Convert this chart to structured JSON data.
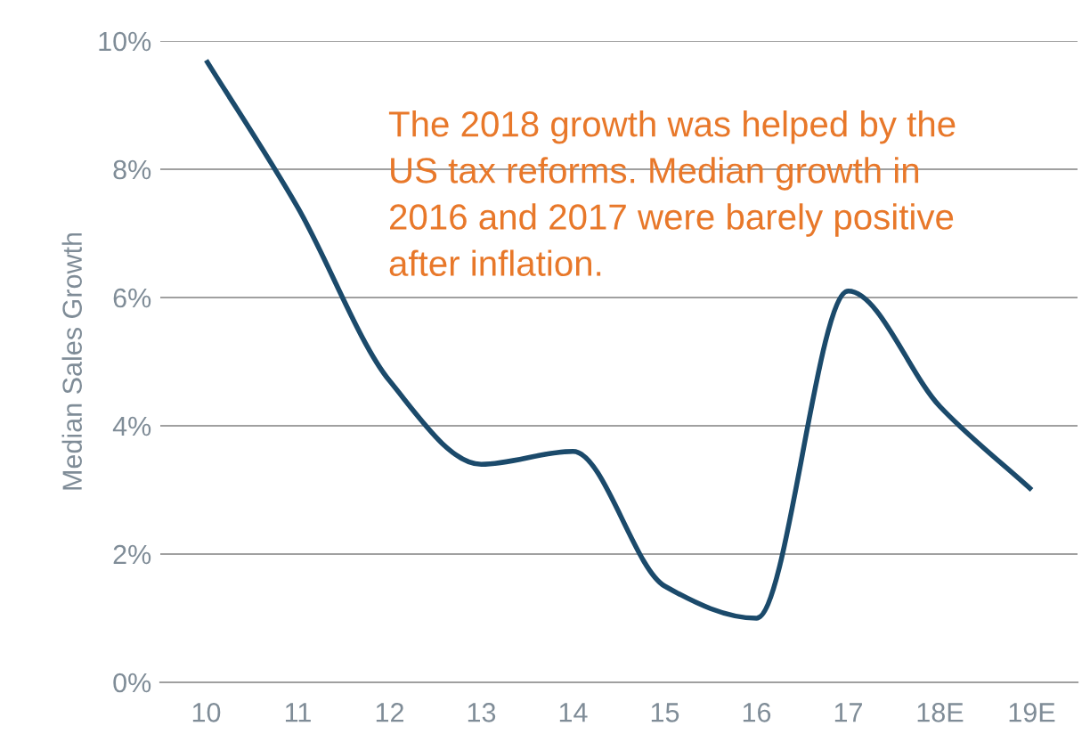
{
  "chart_data": {
    "type": "line",
    "ylabel": "Median Sales Growth",
    "categories": [
      "10",
      "11",
      "12",
      "13",
      "14",
      "15",
      "16",
      "17",
      "18E",
      "19E"
    ],
    "series": [
      {
        "color": "#1b4a6b",
        "values": [
          9.7,
          7.4,
          4.7,
          3.4,
          3.6,
          1.5,
          1.0,
          6.1,
          4.3,
          3.0
        ]
      }
    ],
    "ylim": [
      0,
      10
    ],
    "yticks": [
      {
        "value": 0,
        "label": "0%"
      },
      {
        "value": 2,
        "label": "2%"
      },
      {
        "value": 4,
        "label": "4%"
      },
      {
        "value": 6,
        "label": "6%"
      },
      {
        "value": 8,
        "label": "8%"
      },
      {
        "value": 10,
        "label": "10%"
      }
    ],
    "grid": "y",
    "marker": "none",
    "line_style": "solid",
    "annotations": [
      "The 2018 growth was helped by the\nUS tax reforms. Median growth in\n2016 and 2017 were barely positive\nafter inflation."
    ]
  }
}
